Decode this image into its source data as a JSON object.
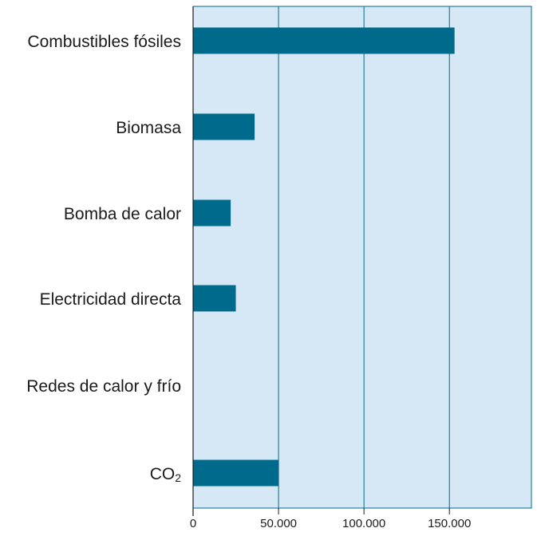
{
  "chart_data": {
    "type": "bar",
    "orientation": "horizontal",
    "categories": [
      "Combustibles fósiles",
      "Biomasa",
      "Bomba de calor",
      "Electricidad directa",
      "Redes de calor y frío",
      "CO2"
    ],
    "category_labels": [
      {
        "text": "Combustibles fósiles"
      },
      {
        "text": "Biomasa"
      },
      {
        "text": "Bomba de calor"
      },
      {
        "text": "Electricidad directa"
      },
      {
        "text": "Redes de calor y frío"
      },
      {
        "text": "CO",
        "sub": "2"
      }
    ],
    "values": [
      153000,
      36000,
      22000,
      25000,
      0,
      50000
    ],
    "xlim": [
      0,
      198000
    ],
    "xticks": [
      0,
      50000,
      100000,
      150000
    ],
    "xtick_labels": [
      "0",
      "50.000",
      "100.000",
      "150.000"
    ],
    "title": "",
    "xlabel": "",
    "ylabel": "",
    "grid": "vertical",
    "legend": "none",
    "colors": {
      "bar": "#006a8c",
      "plot_background": "#d6e8f5",
      "grid": "#006a8c",
      "text": "#1a1a1a"
    }
  }
}
